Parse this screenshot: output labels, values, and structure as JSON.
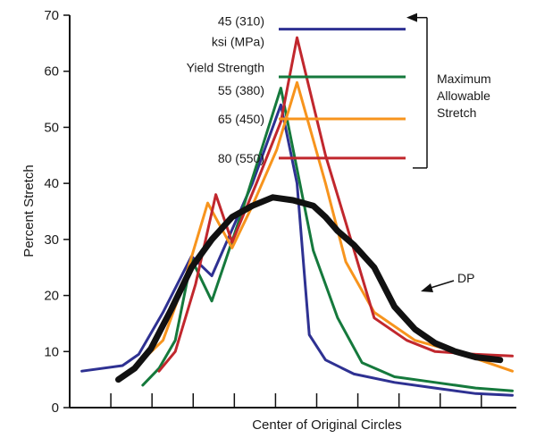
{
  "chart_data": {
    "type": "line",
    "xlabel": "Center of Original Circles",
    "ylabel": "Percent Stretch",
    "ylim": [
      0,
      70
    ],
    "xlim": [
      0,
      11
    ],
    "yticks": [
      0,
      10,
      20,
      30,
      40,
      50,
      60,
      70
    ],
    "xtick_count": 10,
    "grid": false,
    "series": [
      {
        "name": "45 (310) ksi (MPa) Yield Strength",
        "color": "#2e3192",
        "max_allowable_stretch": 67.5,
        "points": [
          [
            0.3,
            6.5
          ],
          [
            1.3,
            7.5
          ],
          [
            1.7,
            9.5
          ],
          [
            2.3,
            17
          ],
          [
            3.0,
            27
          ],
          [
            3.5,
            23.5
          ],
          [
            4.5,
            40
          ],
          [
            5.2,
            54
          ],
          [
            5.6,
            40
          ],
          [
            5.9,
            13
          ],
          [
            6.3,
            8.5
          ],
          [
            7.0,
            6
          ],
          [
            8.0,
            4.5
          ],
          [
            9.0,
            3.5
          ],
          [
            10.0,
            2.5
          ],
          [
            10.9,
            2.2
          ]
        ]
      },
      {
        "name": "55 (380)",
        "color": "#15793c",
        "max_allowable_stretch": 59,
        "points": [
          [
            1.8,
            4
          ],
          [
            2.2,
            7
          ],
          [
            2.6,
            12
          ],
          [
            3.0,
            26.5
          ],
          [
            3.5,
            19
          ],
          [
            4.2,
            34
          ],
          [
            5.2,
            57
          ],
          [
            6.0,
            28
          ],
          [
            6.6,
            16
          ],
          [
            7.2,
            8
          ],
          [
            8.0,
            5.5
          ],
          [
            9.0,
            4.5
          ],
          [
            10.0,
            3.5
          ],
          [
            10.9,
            3
          ]
        ]
      },
      {
        "name": "65 (450)",
        "color": "#f7941d",
        "max_allowable_stretch": 51.5,
        "points": [
          [
            1.8,
            8.5
          ],
          [
            2.3,
            12
          ],
          [
            2.8,
            22
          ],
          [
            3.4,
            36.5
          ],
          [
            4.0,
            28.5
          ],
          [
            4.5,
            36
          ],
          [
            5.1,
            46
          ],
          [
            5.6,
            58
          ],
          [
            6.3,
            40
          ],
          [
            6.8,
            26
          ],
          [
            7.5,
            17
          ],
          [
            8.5,
            12
          ],
          [
            9.5,
            10
          ],
          [
            10.9,
            6.5
          ]
        ]
      },
      {
        "name": "80 (550)",
        "color": "#c1272d",
        "max_allowable_stretch": 44.5,
        "points": [
          [
            2.2,
            6.5
          ],
          [
            2.6,
            10
          ],
          [
            3.1,
            22
          ],
          [
            3.6,
            38
          ],
          [
            4.0,
            29.5
          ],
          [
            4.6,
            40
          ],
          [
            5.2,
            51
          ],
          [
            5.6,
            66
          ],
          [
            6.3,
            45
          ],
          [
            6.8,
            33
          ],
          [
            7.5,
            16
          ],
          [
            8.3,
            12
          ],
          [
            9.0,
            10
          ],
          [
            10.0,
            9.5
          ],
          [
            10.9,
            9.2
          ]
        ]
      },
      {
        "name": "DP",
        "color": "#111111",
        "points": [
          [
            1.2,
            5
          ],
          [
            1.6,
            7
          ],
          [
            2.0,
            10.5
          ],
          [
            2.5,
            17.5
          ],
          [
            3.0,
            25
          ],
          [
            3.5,
            30
          ],
          [
            4.0,
            34
          ],
          [
            4.5,
            36
          ],
          [
            5.0,
            37.5
          ],
          [
            5.5,
            37
          ],
          [
            6.0,
            36
          ],
          [
            6.3,
            34
          ],
          [
            6.6,
            31.5
          ],
          [
            7.0,
            29
          ],
          [
            7.5,
            25
          ],
          [
            8.0,
            18
          ],
          [
            8.5,
            14
          ],
          [
            9.0,
            11.5
          ],
          [
            9.5,
            10
          ],
          [
            10.0,
            9
          ],
          [
            10.6,
            8.5
          ]
        ]
      }
    ],
    "legend": {
      "entries": [
        {
          "line1": "45 (310)",
          "line2": "ksi (MPa)",
          "line3": "Yield Strength",
          "color": "#2e3192"
        },
        {
          "line1": "55 (380)",
          "color": "#15793c"
        },
        {
          "line1": "65 (450)",
          "color": "#f7941d"
        },
        {
          "line1": "80 (550)",
          "color": "#c1272d"
        }
      ],
      "bracket_label": [
        "Maximum",
        "Allowable",
        "Stretch"
      ]
    },
    "annotations": [
      {
        "text": "DP",
        "points_to_series": "DP"
      }
    ]
  }
}
